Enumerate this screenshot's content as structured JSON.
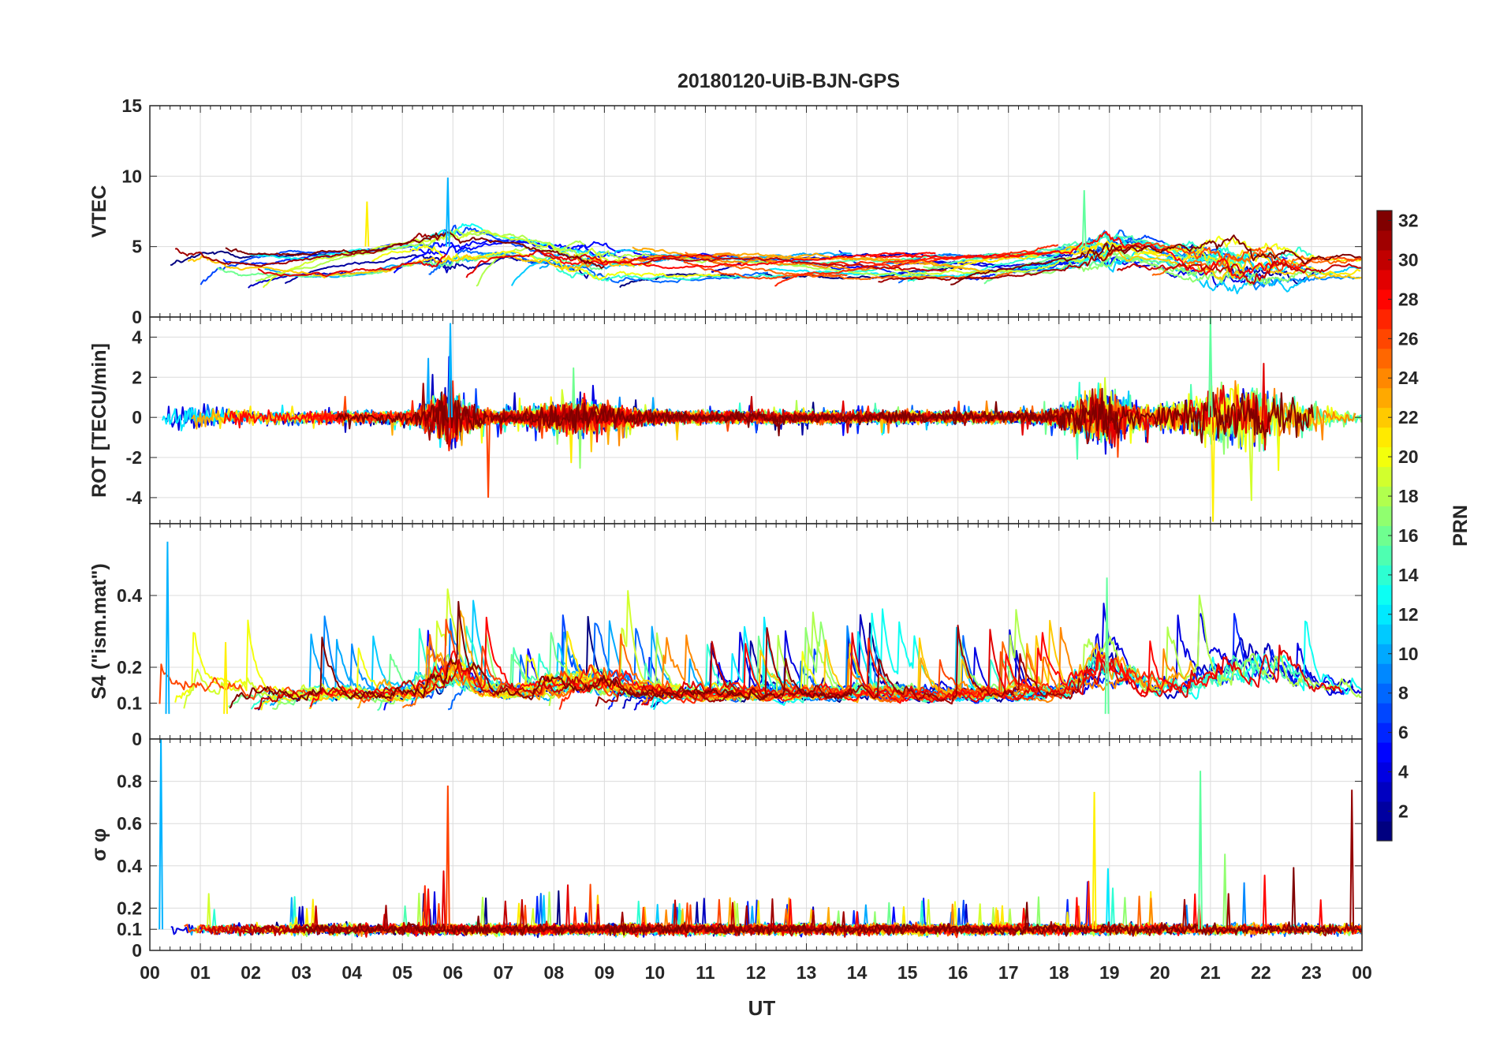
{
  "figure": {
    "title": "20180120-UiB-BJN-GPS",
    "xlabel": "UT"
  },
  "chart_data": [
    {
      "type": "line",
      "panel": "vtec",
      "title": "20180120-UiB-BJN-GPS",
      "ylabel": "VTEC",
      "xlim": [
        0,
        24
      ],
      "ylim": [
        0,
        15
      ],
      "yticks": [
        0,
        5,
        10,
        15
      ],
      "grid": true,
      "series_count": 32,
      "typical_range": [
        1,
        7
      ],
      "peaks": [
        {
          "x": 5.9,
          "y": 9.9
        },
        {
          "x": 18.5,
          "y": 9.0
        },
        {
          "x": 4.3,
          "y": 8.2
        }
      ]
    },
    {
      "type": "line",
      "panel": "rot",
      "ylabel": "ROT [TECU/min]",
      "xlim": [
        0,
        24
      ],
      "ylim": [
        -5.3,
        5.0
      ],
      "yticks": [
        -4,
        -2,
        0,
        2,
        4
      ],
      "grid": true,
      "series_count": 32,
      "extremes": [
        {
          "x": 5.95,
          "y": 4.7
        },
        {
          "x": 21.0,
          "y": 5.0
        },
        {
          "x": 21.05,
          "y": -5.2
        },
        {
          "x": 6.7,
          "y": -4.0
        }
      ]
    },
    {
      "type": "line",
      "panel": "s4",
      "ylabel": "S4 (\"ism.mat\")",
      "xlim": [
        0,
        24
      ],
      "ylim": [
        0,
        0.6
      ],
      "yticks": [
        0,
        0.1,
        0.2,
        0.4
      ],
      "grid": true,
      "series_count": 32,
      "typical_range": [
        0.04,
        0.15
      ],
      "peaks": [
        {
          "x": 0.35,
          "y": 0.55
        },
        {
          "x": 18.95,
          "y": 0.45
        },
        {
          "x": 1.5,
          "y": 0.27
        }
      ]
    },
    {
      "type": "line",
      "panel": "sigma_phi",
      "ylabel": "σ φ",
      "xlim": [
        0,
        24
      ],
      "ylim": [
        0,
        1.0
      ],
      "yticks": [
        0,
        0.1,
        0.2,
        0.4,
        0.6,
        0.8
      ],
      "grid": true,
      "series_count": 32,
      "baseline": 0.1,
      "peaks": [
        {
          "x": 0.22,
          "y": 1.0
        },
        {
          "x": 20.8,
          "y": 0.85
        },
        {
          "x": 18.7,
          "y": 0.75
        },
        {
          "x": 5.9,
          "y": 0.78
        },
        {
          "x": 23.8,
          "y": 0.76
        }
      ]
    }
  ],
  "xaxis": {
    "ticks": [
      0,
      1,
      2,
      3,
      4,
      5,
      6,
      7,
      8,
      9,
      10,
      11,
      12,
      13,
      14,
      15,
      16,
      17,
      18,
      19,
      20,
      21,
      22,
      23,
      24
    ],
    "tick_labels": [
      "00",
      "01",
      "02",
      "03",
      "04",
      "05",
      "06",
      "07",
      "08",
      "09",
      "10",
      "11",
      "12",
      "13",
      "14",
      "15",
      "16",
      "17",
      "18",
      "19",
      "20",
      "21",
      "22",
      "23",
      "00"
    ]
  },
  "colorbar": {
    "label": "PRN",
    "range": [
      1,
      32
    ],
    "ticks": [
      2,
      4,
      6,
      8,
      10,
      12,
      14,
      16,
      18,
      20,
      22,
      24,
      26,
      28,
      30,
      32
    ],
    "colormap": "jet"
  }
}
